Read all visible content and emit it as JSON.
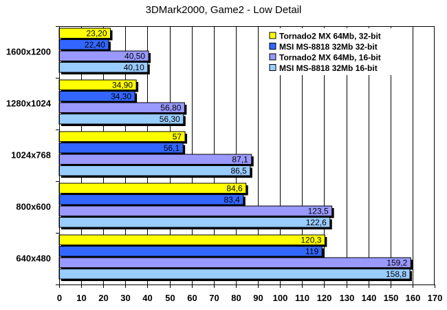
{
  "chart_data": {
    "type": "bar",
    "orientation": "horizontal",
    "title": "3DMark2000, Game2 - Low Detail",
    "xlabel": "",
    "ylabel": "",
    "xlim": [
      0,
      170
    ],
    "x_ticks": [
      "0",
      "10",
      "20",
      "30",
      "40",
      "50",
      "60",
      "70",
      "80",
      "90",
      "100",
      "110",
      "120",
      "130",
      "140",
      "150",
      "160",
      "170"
    ],
    "grid": "vertical",
    "legend_position": "top-right",
    "categories": [
      "1600x1200",
      "1280x1024",
      "1024x768",
      "800x600",
      "640x480"
    ],
    "series": [
      {
        "name": "Tornado2 MX 64Mb, 32-bit",
        "color": "#ffff00",
        "values": [
          23.2,
          34.9,
          57,
          84.6,
          120.3
        ],
        "labels": [
          "23,20",
          "34,90",
          "57",
          "84,6",
          "120,3"
        ]
      },
      {
        "name": "MSI MS-8818 32Mb 32-bit",
        "color": "#3366ff",
        "values": [
          22.4,
          34.3,
          56.1,
          83.4,
          119
        ],
        "labels": [
          "22,40",
          "34,30",
          "56,1",
          "83,4",
          "119"
        ]
      },
      {
        "name": "Tornado2 MX 64Mb, 16-bit",
        "color": "#9999ff",
        "values": [
          40.5,
          56.8,
          87.1,
          123.5,
          159.2
        ],
        "labels": [
          "40,50",
          "56,80",
          "87,1",
          "123,5",
          "159,2"
        ]
      },
      {
        "name": "MSI MS-8818 32Mb 16-bit",
        "color": "#99ccff",
        "values": [
          40.1,
          56.3,
          86.5,
          122.6,
          158.8
        ],
        "labels": [
          "40,10",
          "56,30",
          "86,5",
          "122,6",
          "158,8"
        ]
      }
    ]
  }
}
